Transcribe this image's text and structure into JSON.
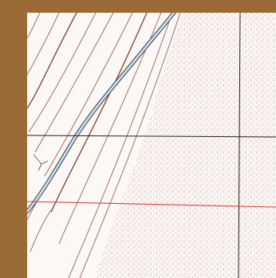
{
  "map": {
    "type": "topographic-map-fragment",
    "colors": {
      "frame": "#9b6b35",
      "paper": "#fbf8f6",
      "contour": "#a0604a",
      "contour_index": "#8a4a30",
      "stipple": "#b06a5a",
      "road_outline": "#4e5e6c",
      "road_fill": "#dce6ee",
      "grid_line": "#222222",
      "boundary_line": "#e04040"
    },
    "features": {
      "contour_lines": 12,
      "double_line_road": true,
      "stippled_sand_area": true,
      "grid_lines": [
        "horizontal",
        "vertical"
      ],
      "red_boundary_line": true
    }
  }
}
